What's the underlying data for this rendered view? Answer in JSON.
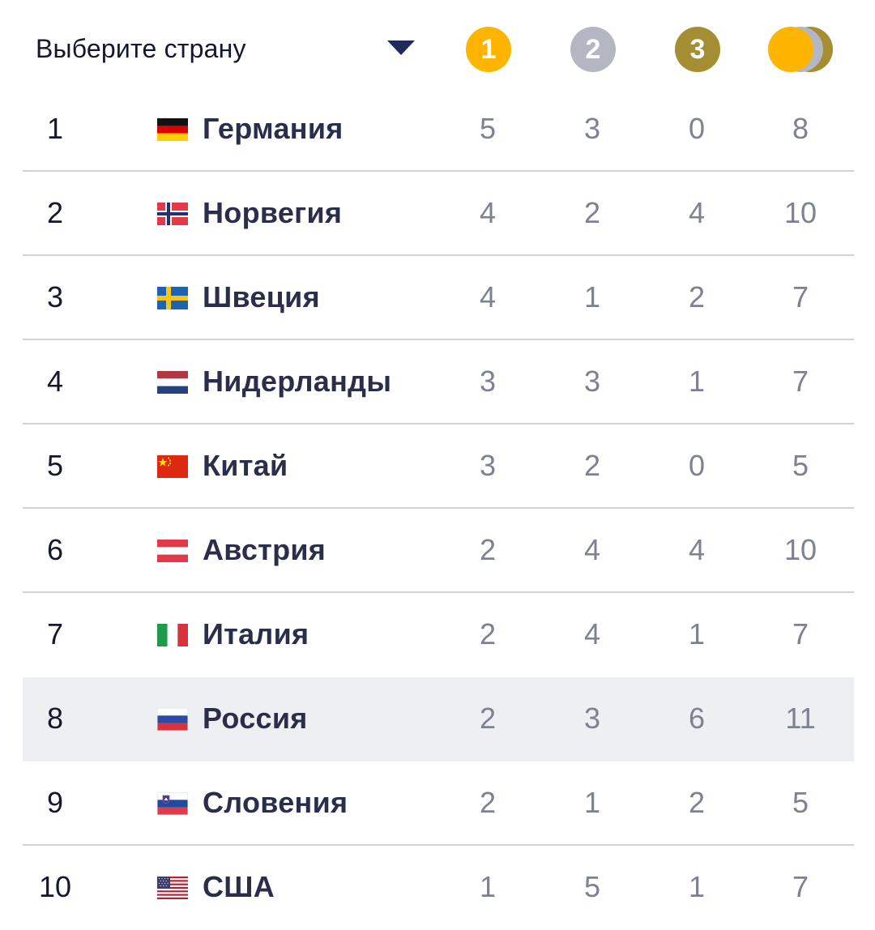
{
  "header": {
    "select_label": "Выберите страну",
    "medals": {
      "gold": {
        "label": "1",
        "color": "#ffb400"
      },
      "silver": {
        "label": "2",
        "color": "#b4b6c2"
      },
      "bronze": {
        "label": "3",
        "color": "#a48d33"
      },
      "total_icon": "stacked-medals-icon"
    }
  },
  "colors": {
    "text_dark": "#15172e",
    "country_text": "#2b2e4a",
    "number_text": "#7d8192",
    "divider": "#cfd2dc",
    "highlight_row": "#eeeff2"
  },
  "rows": [
    {
      "rank": "1",
      "country": "Германия",
      "flag": "germany-flag",
      "gold": "5",
      "silver": "3",
      "bronze": "0",
      "total": "8"
    },
    {
      "rank": "2",
      "country": "Норвегия",
      "flag": "norway-flag",
      "gold": "4",
      "silver": "2",
      "bronze": "4",
      "total": "10"
    },
    {
      "rank": "3",
      "country": "Швеция",
      "flag": "sweden-flag",
      "gold": "4",
      "silver": "1",
      "bronze": "2",
      "total": "7"
    },
    {
      "rank": "4",
      "country": "Нидерланды",
      "flag": "netherlands-flag",
      "gold": "3",
      "silver": "3",
      "bronze": "1",
      "total": "7"
    },
    {
      "rank": "5",
      "country": "Китай",
      "flag": "china-flag",
      "gold": "3",
      "silver": "2",
      "bronze": "0",
      "total": "5"
    },
    {
      "rank": "6",
      "country": "Австрия",
      "flag": "austria-flag",
      "gold": "2",
      "silver": "4",
      "bronze": "4",
      "total": "10"
    },
    {
      "rank": "7",
      "country": "Италия",
      "flag": "italy-flag",
      "gold": "2",
      "silver": "4",
      "bronze": "1",
      "total": "7"
    },
    {
      "rank": "8",
      "country": "Россия",
      "flag": "russia-flag",
      "gold": "2",
      "silver": "3",
      "bronze": "6",
      "total": "11",
      "highlighted": true
    },
    {
      "rank": "9",
      "country": "Словения",
      "flag": "slovenia-flag",
      "gold": "2",
      "silver": "1",
      "bronze": "2",
      "total": "5"
    },
    {
      "rank": "10",
      "country": "США",
      "flag": "usa-flag",
      "gold": "1",
      "silver": "5",
      "bronze": "1",
      "total": "7"
    }
  ]
}
